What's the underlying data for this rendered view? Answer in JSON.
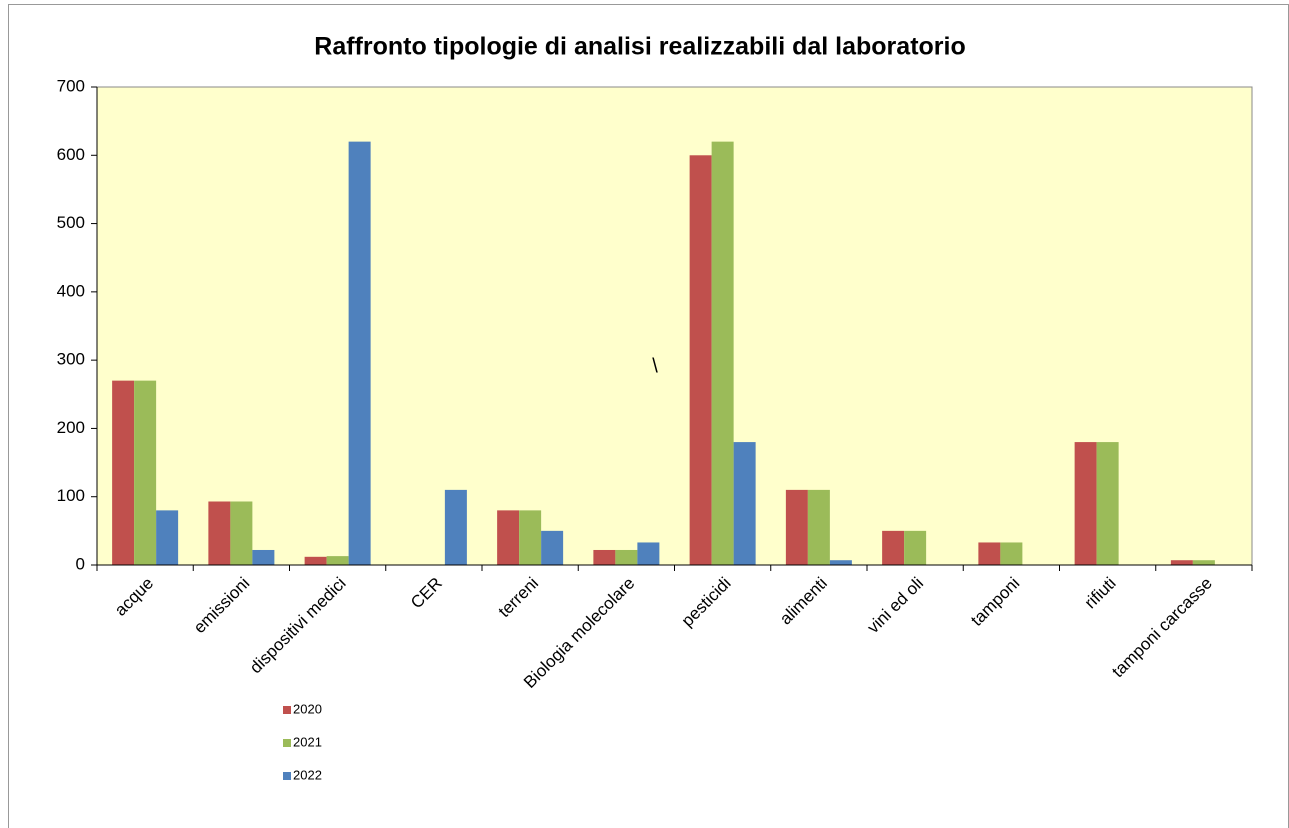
{
  "chart_data": {
    "type": "bar",
    "title": "Raffronto tipologie di analisi realizzabili dal laboratorio",
    "annotation": "\\",
    "categories": [
      "acque",
      "emissioni",
      "dispositivi medici",
      "CER",
      "terreni",
      "Biologia molecolare",
      "pesticidi",
      "alimenti",
      "vini ed oli",
      "tamponi",
      "rifiuti",
      "tamponi carcasse"
    ],
    "series": [
      {
        "name": "2020",
        "color": "#c0504d",
        "values": [
          270,
          93,
          12,
          0,
          80,
          22,
          600,
          110,
          50,
          33,
          180,
          7
        ]
      },
      {
        "name": "2021",
        "color": "#9bbb59",
        "values": [
          270,
          93,
          13,
          0,
          80,
          22,
          620,
          110,
          50,
          33,
          180,
          7
        ]
      },
      {
        "name": "2022",
        "color": "#4f81bd",
        "values": [
          80,
          22,
          620,
          110,
          50,
          33,
          180,
          7,
          0,
          0,
          0,
          0
        ]
      }
    ],
    "ylim": [
      0,
      700
    ],
    "yticks": [
      0,
      100,
      200,
      300,
      400,
      500,
      600,
      700
    ],
    "plot_background": "#ffffcc"
  }
}
